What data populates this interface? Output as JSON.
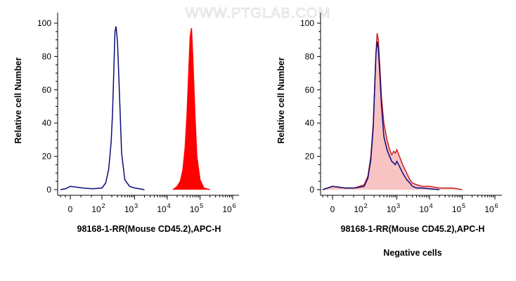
{
  "watermark": "WWW.PTGLAB.COM",
  "colors": {
    "navy": "#0c0c7a",
    "red": "#ff0000",
    "dark_red": "#cc1f1f",
    "pink_fill": "#f7c3c3"
  },
  "chart_data": [
    {
      "type": "area",
      "panel": "left",
      "xscale": "log",
      "xlabel": "98168-1-RR(Mouse CD45.2),APC-H",
      "ylabel": "Relative cell Number",
      "ylim": [
        0,
        100
      ],
      "y_ticks": [
        0,
        20,
        40,
        60,
        80,
        100
      ],
      "x_ticks": [
        {
          "base": "0",
          "exp": ""
        },
        {
          "base": "10",
          "exp": "2"
        },
        {
          "base": "10",
          "exp": "3"
        },
        {
          "base": "10",
          "exp": "4"
        },
        {
          "base": "10",
          "exp": "5"
        },
        {
          "base": "10",
          "exp": "6"
        }
      ],
      "caption": "",
      "series": [
        {
          "style": "line",
          "color": "#0c0c7a",
          "x": [
            -200,
            -100,
            0,
            40,
            70,
            100,
            130,
            160,
            190,
            210,
            230,
            250,
            270,
            300,
            340,
            400,
            500,
            700,
            1000,
            2000
          ],
          "y": [
            0,
            0.5,
            2,
            1,
            0.5,
            1,
            4,
            12,
            28,
            45,
            70,
            95,
            98,
            88,
            60,
            22,
            6,
            2,
            1,
            0
          ]
        },
        {
          "style": "filled",
          "color": "#ff0000",
          "x": [
            15000,
            20000,
            25000,
            30000,
            35000,
            40000,
            45000,
            50000,
            55000,
            60000,
            70000,
            80000,
            100000,
            130000,
            200000
          ],
          "y": [
            0,
            2,
            5,
            12,
            25,
            45,
            70,
            92,
            97,
            80,
            45,
            20,
            6,
            1,
            0
          ]
        }
      ]
    },
    {
      "type": "area",
      "panel": "right",
      "xscale": "log",
      "xlabel": "98168-1-RR(Mouse CD45.2),APC-H",
      "ylabel": "Relative cell Number",
      "ylim": [
        0,
        100
      ],
      "y_ticks": [
        0,
        20,
        40,
        60,
        80,
        100
      ],
      "x_ticks": [
        {
          "base": "0",
          "exp": ""
        },
        {
          "base": "10",
          "exp": "2"
        },
        {
          "base": "10",
          "exp": "3"
        },
        {
          "base": "10",
          "exp": "4"
        },
        {
          "base": "10",
          "exp": "5"
        },
        {
          "base": "10",
          "exp": "6"
        }
      ],
      "caption": "Negative cells",
      "series": [
        {
          "style": "filled",
          "color": "#cc1f1f",
          "fill": "#f7c3c3",
          "x": [
            -200,
            -100,
            0,
            40,
            70,
            100,
            130,
            160,
            190,
            210,
            230,
            250,
            270,
            300,
            340,
            400,
            500,
            600,
            700,
            800,
            900,
            1000,
            1200,
            1500,
            2000,
            2500,
            3000,
            4000,
            6000,
            10000,
            20000,
            50000,
            100000
          ],
          "y": [
            0,
            1,
            2,
            1,
            1,
            3,
            8,
            20,
            40,
            62,
            82,
            94,
            90,
            75,
            55,
            40,
            30,
            24,
            21,
            23,
            22,
            24,
            20,
            15,
            10,
            6,
            4,
            3,
            2,
            2,
            1,
            1,
            0
          ]
        },
        {
          "style": "line",
          "color": "#0c0c7a",
          "x": [
            -200,
            -100,
            0,
            40,
            70,
            100,
            130,
            160,
            190,
            210,
            230,
            250,
            270,
            300,
            340,
            400,
            500,
            600,
            700,
            800,
            900,
            1000,
            1200,
            1500,
            2000,
            2500,
            3000,
            4000,
            6000,
            10000,
            20000
          ],
          "y": [
            0,
            1,
            2,
            1,
            1,
            2,
            7,
            18,
            38,
            62,
            82,
            89,
            85,
            70,
            50,
            32,
            24,
            20,
            17,
            16,
            15,
            17,
            14,
            10,
            6,
            4,
            2,
            1,
            1,
            0.5,
            0
          ]
        }
      ]
    }
  ]
}
